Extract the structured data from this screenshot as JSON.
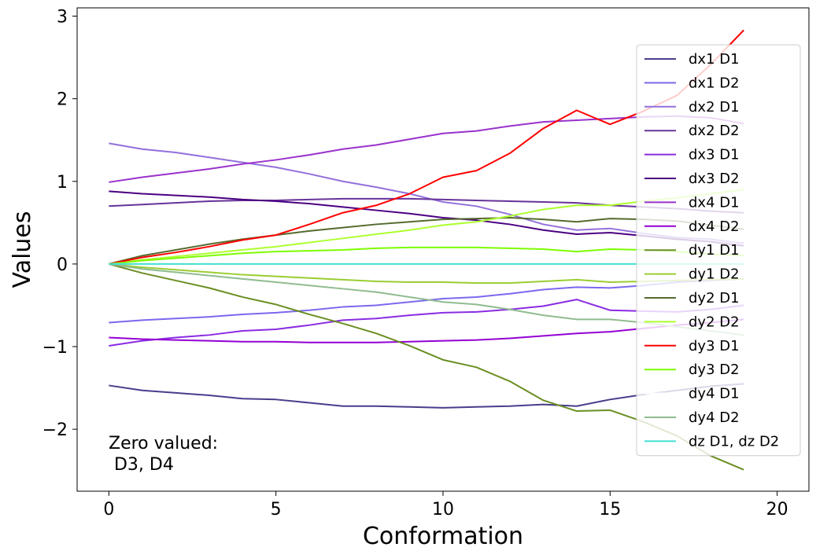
{
  "chart_data": {
    "type": "line",
    "title": "",
    "xlabel": "Conformation",
    "ylabel": "Values",
    "xlim": [
      -0.95,
      20.95
    ],
    "ylim": [
      -2.75,
      3.1
    ],
    "xticks": [
      0,
      5,
      10,
      15,
      20
    ],
    "yticks": [
      -2,
      -1,
      0,
      1,
      2,
      3
    ],
    "xtick_labels": [
      "0",
      "5",
      "10",
      "15",
      "20"
    ],
    "ytick_labels": [
      "−2",
      "−1",
      "0",
      "1",
      "2",
      "3"
    ],
    "grid": false,
    "legend_position": "upper-right",
    "annotation": [
      "Zero valued:",
      " D3, D4"
    ],
    "x": [
      0,
      1,
      2,
      3,
      4,
      5,
      6,
      7,
      8,
      9,
      10,
      11,
      12,
      13,
      14,
      15,
      16,
      17,
      18,
      19
    ],
    "series": [
      {
        "name": "dx1 D1",
        "color": "#483d8b",
        "values": [
          -1.47,
          -1.53,
          -1.56,
          -1.59,
          -1.63,
          -1.64,
          -1.68,
          -1.72,
          -1.72,
          -1.73,
          -1.74,
          -1.73,
          -1.72,
          -1.7,
          -1.72,
          -1.64,
          -1.58,
          -1.53,
          -1.48,
          -1.45
        ]
      },
      {
        "name": "dx1 D2",
        "color": "#7b68ee",
        "values": [
          -0.71,
          -0.68,
          -0.66,
          -0.64,
          -0.61,
          -0.59,
          -0.56,
          -0.52,
          -0.5,
          -0.46,
          -0.42,
          -0.4,
          -0.36,
          -0.31,
          -0.28,
          -0.29,
          -0.26,
          -0.22,
          -0.2,
          -0.18
        ]
      },
      {
        "name": "dx2 D1",
        "color": "#9370db",
        "values": [
          1.46,
          1.39,
          1.35,
          1.29,
          1.23,
          1.17,
          1.09,
          1.0,
          0.93,
          0.85,
          0.75,
          0.7,
          0.6,
          0.48,
          0.41,
          0.43,
          0.37,
          0.32,
          0.3,
          0.25
        ]
      },
      {
        "name": "dx2 D2",
        "color": "#663399",
        "values": [
          0.7,
          0.72,
          0.74,
          0.76,
          0.77,
          0.77,
          0.78,
          0.79,
          0.79,
          0.79,
          0.78,
          0.77,
          0.76,
          0.75,
          0.74,
          0.71,
          0.69,
          0.67,
          0.64,
          0.62
        ]
      },
      {
        "name": "dx3 D1",
        "color": "#8a2be2",
        "values": [
          -0.99,
          -0.93,
          -0.89,
          -0.86,
          -0.81,
          -0.79,
          -0.74,
          -0.68,
          -0.66,
          -0.62,
          -0.59,
          -0.58,
          -0.55,
          -0.51,
          -0.43,
          -0.56,
          -0.57,
          -0.58,
          -0.55,
          -0.5
        ]
      },
      {
        "name": "dx3 D2",
        "color": "#4b0082",
        "values": [
          0.88,
          0.85,
          0.83,
          0.81,
          0.78,
          0.76,
          0.73,
          0.69,
          0.65,
          0.61,
          0.56,
          0.53,
          0.48,
          0.41,
          0.36,
          0.38,
          0.34,
          0.3,
          0.27,
          0.22
        ]
      },
      {
        "name": "dx4 D1",
        "color": "#9932cc",
        "values": [
          0.99,
          1.05,
          1.1,
          1.15,
          1.21,
          1.26,
          1.32,
          1.39,
          1.44,
          1.51,
          1.58,
          1.61,
          1.67,
          1.72,
          1.74,
          1.76,
          1.78,
          1.79,
          1.77,
          1.7
        ]
      },
      {
        "name": "dx4 D2",
        "color": "#9400d3",
        "values": [
          -0.89,
          -0.91,
          -0.92,
          -0.93,
          -0.94,
          -0.94,
          -0.95,
          -0.95,
          -0.95,
          -0.94,
          -0.93,
          -0.92,
          -0.9,
          -0.87,
          -0.84,
          -0.82,
          -0.78,
          -0.74,
          -0.71,
          -0.67
        ]
      },
      {
        "name": "dy1 D1",
        "color": "#6b8e23",
        "values": [
          0,
          -0.11,
          -0.2,
          -0.29,
          -0.4,
          -0.49,
          -0.61,
          -0.72,
          -0.84,
          -0.99,
          -1.16,
          -1.25,
          -1.42,
          -1.65,
          -1.78,
          -1.77,
          -1.91,
          -2.08,
          -2.32,
          -2.49
        ]
      },
      {
        "name": "dy1 D2",
        "color": "#9acd32",
        "values": [
          0,
          -0.04,
          -0.07,
          -0.1,
          -0.13,
          -0.15,
          -0.17,
          -0.19,
          -0.21,
          -0.22,
          -0.22,
          -0.23,
          -0.23,
          -0.21,
          -0.19,
          -0.22,
          -0.21,
          -0.2,
          -0.19,
          -0.18
        ]
      },
      {
        "name": "dy2 D1",
        "color": "#556b2f",
        "values": [
          0,
          0.1,
          0.17,
          0.24,
          0.3,
          0.35,
          0.4,
          0.44,
          0.48,
          0.51,
          0.54,
          0.55,
          0.56,
          0.54,
          0.51,
          0.55,
          0.54,
          0.52,
          0.47,
          0.42
        ]
      },
      {
        "name": "dy2 D2",
        "color": "#adff2f",
        "values": [
          0,
          0.05,
          0.09,
          0.13,
          0.17,
          0.21,
          0.26,
          0.31,
          0.36,
          0.41,
          0.47,
          0.51,
          0.58,
          0.66,
          0.71,
          0.71,
          0.76,
          0.8,
          0.85,
          0.9
        ]
      },
      {
        "name": "dy3 D1",
        "color": "#ff0000",
        "values": [
          0,
          0.08,
          0.14,
          0.21,
          0.29,
          0.35,
          0.48,
          0.62,
          0.71,
          0.85,
          1.05,
          1.13,
          1.34,
          1.64,
          1.86,
          1.69,
          1.85,
          2.04,
          2.41,
          2.83
        ]
      },
      {
        "name": "dy3 D2",
        "color": "#7cfc00",
        "values": [
          0,
          0.04,
          0.07,
          0.1,
          0.13,
          0.15,
          0.16,
          0.17,
          0.19,
          0.2,
          0.2,
          0.2,
          0.19,
          0.18,
          0.15,
          0.18,
          0.17,
          0.15,
          0.12,
          0.1
        ]
      },
      {
        "name": "dy4 D1",
        "color": "#ffffff",
        "values": [
          0,
          0,
          0,
          0,
          0,
          0,
          0,
          0,
          0,
          0,
          0,
          0,
          0,
          0,
          0,
          0,
          0,
          0,
          0,
          0
        ]
      },
      {
        "name": "dy4 D2",
        "color": "#8fbc8f",
        "values": [
          0,
          -0.06,
          -0.1,
          -0.14,
          -0.18,
          -0.22,
          -0.26,
          -0.3,
          -0.34,
          -0.4,
          -0.46,
          -0.49,
          -0.55,
          -0.62,
          -0.67,
          -0.67,
          -0.71,
          -0.76,
          -0.81,
          -0.86
        ]
      },
      {
        "name": "dz D1, dz D2",
        "color": "#40e0d0",
        "values": [
          0,
          0,
          0,
          0,
          0,
          0,
          0,
          0,
          0,
          0,
          0,
          0,
          0,
          0,
          0,
          0,
          0,
          0,
          0,
          0
        ]
      }
    ]
  }
}
